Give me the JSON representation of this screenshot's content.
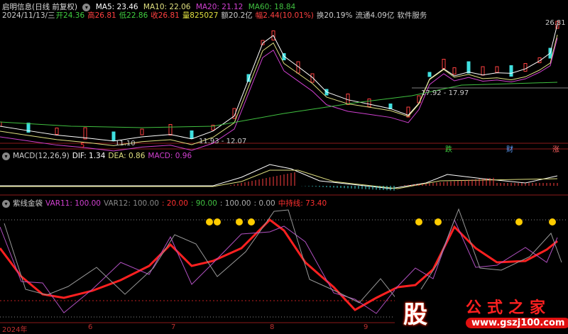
{
  "header": {
    "stock": "启明信息(日线 前复权)",
    "ma5": "MA5: 23.46",
    "ma10": "MA10: 22.06",
    "ma20": "MA20: 21.12",
    "ma60": "MA60: 18.84",
    "date": "2024/11/13/三",
    "open": "开24.36",
    "high": "高26.81",
    "low": "低22.86",
    "close": "收26.81",
    "volume": "量825027",
    "amount": "额20.2亿",
    "change": "幅2.44(10.01%)",
    "turnover": "换20.19%",
    "float": "流通4.09亿",
    "sector": "软件服务"
  },
  "price_panel": {
    "high_label": "26.81",
    "low_label": "11.10",
    "range_label_1": "11.93 - 12.07",
    "range_label_2": "17.92 - 17.97"
  },
  "markers": {
    "m1": "5",
    "m2": "跌",
    "m3": "财",
    "m4": "涨"
  },
  "macd": {
    "title": "MACD(12,26,9)",
    "dif": "DIF: 1.34",
    "dea": "DEA: 0.86",
    "macd": "MACD: 0.96"
  },
  "indicator": {
    "title": "紫线金袋",
    "var11": "VAR11: 100.00",
    "var12": "VAR12: 100.00",
    "v20": ": 20.00",
    "v90": ": 90.00",
    "v100": ": 100.00",
    "v0": ": 0.00",
    "mid": "中持线: 73.40"
  },
  "axis": {
    "labels": [
      "2024年",
      "6",
      "7",
      "8",
      "9"
    ]
  },
  "watermark": {
    "char": "股",
    "name": "公式之家",
    "url": "www.gszj100.com"
  },
  "colors": {
    "up": "#ff4040",
    "down": "#40e0e0",
    "ma5": "#ffffff",
    "ma10": "#e0e080",
    "ma20": "#d040d0",
    "ma60": "#40c040",
    "grid": "#8b1a1a"
  }
}
